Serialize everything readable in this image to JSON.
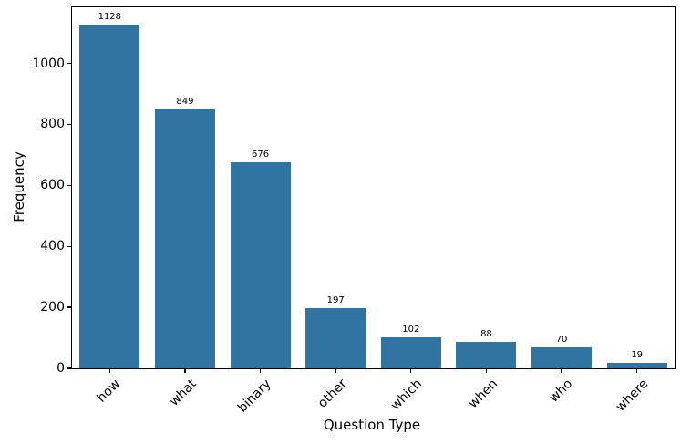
{
  "chart_data": {
    "type": "bar",
    "title": "",
    "xlabel": "Question Type",
    "ylabel": "Frequency",
    "categories": [
      "how",
      "what",
      "binary",
      "other",
      "which",
      "when",
      "who",
      "where"
    ],
    "values": [
      1128,
      849,
      676,
      197,
      102,
      88,
      70,
      19
    ],
    "bar_value_labels": [
      "1128",
      "849",
      "676",
      "197",
      "102",
      "88",
      "70",
      "19"
    ],
    "ylim": [
      0,
      1184
    ],
    "yticks": [
      0,
      200,
      400,
      600,
      800,
      1000
    ],
    "x_tick_rotation_deg": 45,
    "grid": false,
    "legend": null,
    "bar_color": "#3274a1",
    "axis_color": "#000000",
    "text_color": "#000000",
    "background_color": "#ffffff"
  }
}
